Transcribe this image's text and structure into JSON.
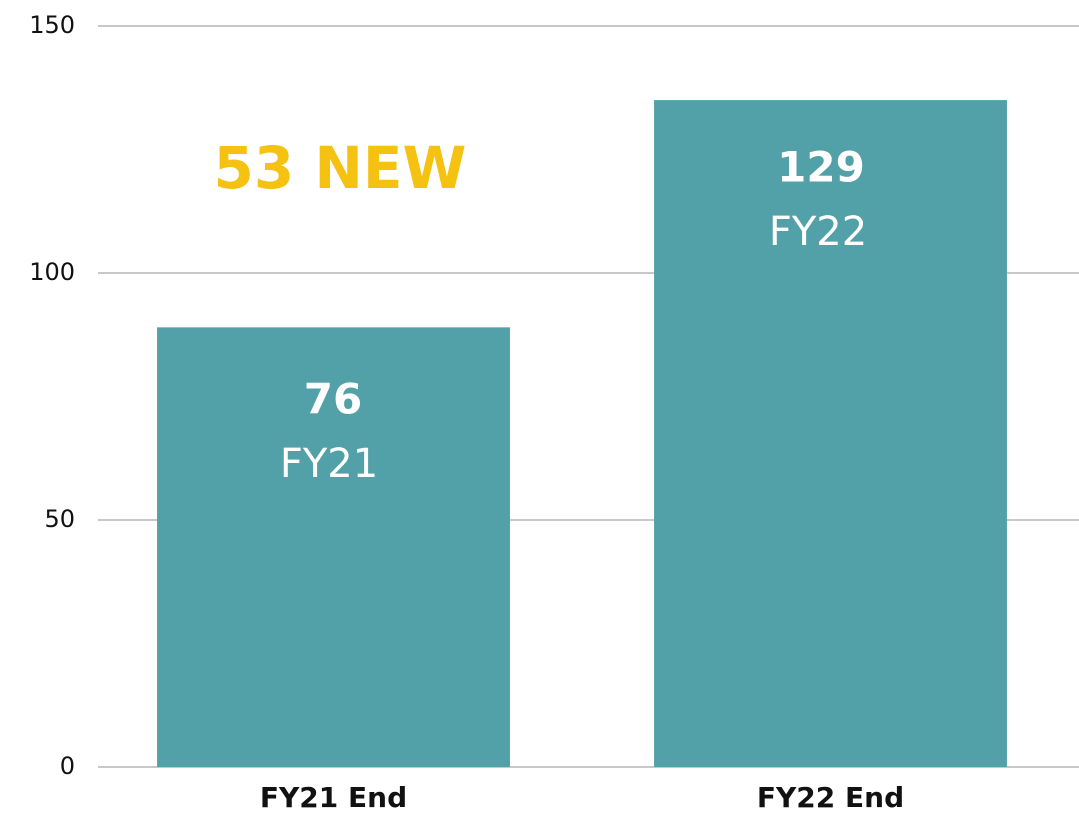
{
  "chart_data": {
    "type": "bar",
    "categories": [
      "FY21 End",
      "FY22 End"
    ],
    "values": [
      89,
      135
    ],
    "color": "#52a0a8",
    "ylim": [
      0,
      150
    ],
    "yticks": [
      0,
      50,
      100,
      150
    ],
    "grid": true,
    "annotations": [
      {
        "text": "53 NEW",
        "color": "#f5c211"
      },
      {
        "text": "76",
        "color": "#ffffff"
      },
      {
        "text": "FY21",
        "color": "#ffffff"
      },
      {
        "text": "129",
        "color": "#ffffff"
      },
      {
        "text": "FY22",
        "color": "#ffffff"
      }
    ]
  }
}
